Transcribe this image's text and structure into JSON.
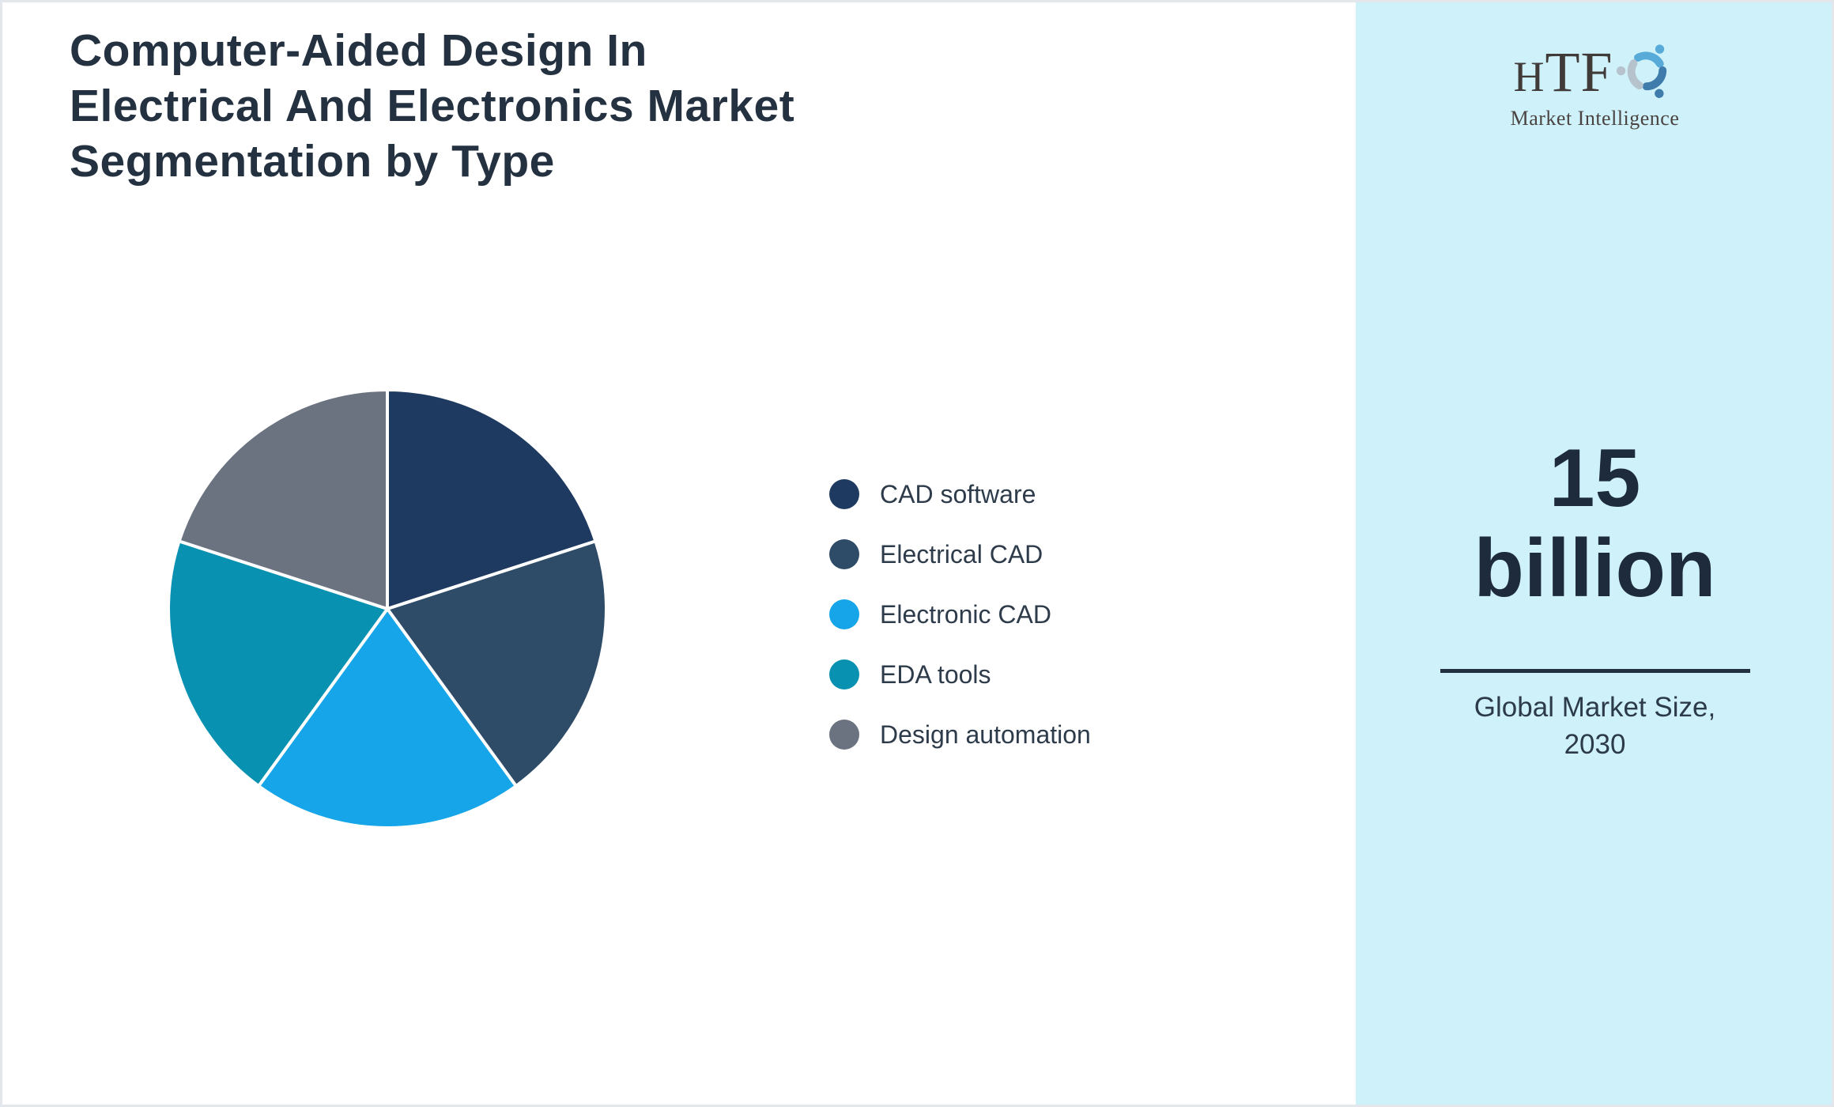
{
  "title": "Computer-Aided Design In Electrical And Electronics Market Segmentation by Type",
  "chart_data": {
    "type": "pie",
    "title": "Computer-Aided Design In Electrical And Electronics Market Segmentation by Type",
    "unit": "percent of circle",
    "start_angle_deg": 0,
    "direction": "clockwise",
    "legend_position": "right",
    "categories": [
      "CAD software",
      "Electrical CAD",
      "Electronic CAD",
      "EDA tools",
      "Design automation"
    ],
    "values": [
      20,
      20,
      20,
      20,
      20
    ],
    "slices": [
      {
        "label": "CAD software",
        "value": 20,
        "color": "#1f3a60"
      },
      {
        "label": "Electrical CAD",
        "value": 20,
        "color": "#2e4b68"
      },
      {
        "label": "Electronic CAD",
        "value": 20,
        "color": "#15a5e8"
      },
      {
        "label": "EDA tools",
        "value": 20,
        "color": "#0991b2"
      },
      {
        "label": "Design automation",
        "value": 20,
        "color": "#6b7280"
      }
    ],
    "slice_stroke_color": "#ffffff"
  },
  "panel": {
    "background_color": "#cff2fa",
    "logo": {
      "name": "HTF",
      "subtitle": "Market Intelligence"
    },
    "market_size": {
      "value": "15 billion",
      "caption_line1": "Global Market Size,",
      "caption_line2": "2030"
    }
  }
}
